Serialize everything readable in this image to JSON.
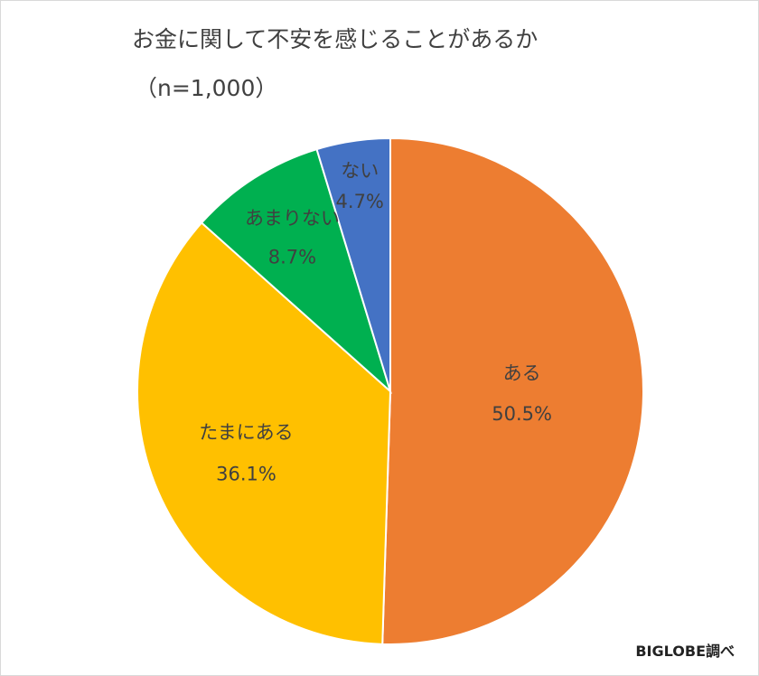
{
  "chart_data": {
    "type": "pie",
    "title": "お金に関して不安を感じることがあるか",
    "subtitle": "（n=1,000）",
    "categories": [
      "ある",
      "たまにある",
      "あまりない",
      "ない"
    ],
    "values": [
      50.5,
      36.1,
      8.7,
      4.7
    ],
    "value_labels": [
      "50.5%",
      "36.1%",
      "8.7%",
      "4.7%"
    ],
    "colors": [
      "#ed7d31",
      "#ffc000",
      "#00b050",
      "#4472c4"
    ],
    "start_angle": "12 o'clock",
    "direction": "clockwise",
    "labels_inside": true
  },
  "source_note": "BIGLOBE調べ"
}
